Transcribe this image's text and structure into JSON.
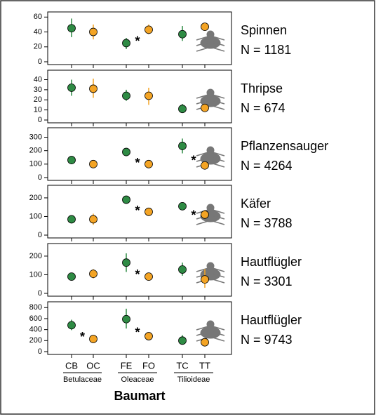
{
  "chart_data": [
    {
      "type": "dotplot",
      "title": "Spinnen",
      "n_label": "N = 1181",
      "ylim": [
        0,
        65
      ],
      "yticks": [
        0,
        20,
        40,
        60
      ],
      "values": [
        45,
        40,
        25,
        43,
        37,
        47
      ],
      "lower": [
        33,
        30,
        17,
        37,
        28,
        42
      ],
      "upper": [
        58,
        50,
        32,
        50,
        48,
        52
      ],
      "significant": [
        false,
        true,
        false
      ]
    },
    {
      "type": "dotplot",
      "title": "Thripse",
      "n_label": "N = 674",
      "ylim": [
        0,
        48
      ],
      "yticks": [
        0,
        10,
        20,
        30,
        40
      ],
      "values": [
        32,
        31,
        24,
        24,
        11,
        12
      ],
      "lower": [
        24,
        22,
        19,
        15,
        8,
        10
      ],
      "upper": [
        40,
        41,
        30,
        32,
        16,
        15
      ],
      "significant": [
        false,
        false,
        false
      ]
    },
    {
      "type": "dotplot",
      "title": "Pflanzensauger",
      "n_label": "N = 4264",
      "ylim": [
        0,
        360
      ],
      "yticks": [
        0,
        100,
        200,
        300
      ],
      "values": [
        130,
        100,
        190,
        100,
        235,
        90
      ],
      "lower": [
        115,
        85,
        160,
        85,
        180,
        75
      ],
      "upper": [
        145,
        115,
        220,
        115,
        290,
        105
      ],
      "significant": [
        false,
        true,
        true
      ]
    },
    {
      "type": "dotplot",
      "title": "Käfer",
      "n_label": "N = 3788",
      "ylim": [
        0,
        260
      ],
      "yticks": [
        0,
        100,
        200
      ],
      "values": [
        85,
        85,
        190,
        125,
        155,
        110
      ],
      "lower": [
        75,
        55,
        170,
        115,
        140,
        90
      ],
      "upper": [
        95,
        115,
        210,
        135,
        170,
        135
      ],
      "significant": [
        false,
        true,
        true
      ]
    },
    {
      "type": "dotplot",
      "title": "Hautflügler",
      "n_label": "N = 3301",
      "ylim": [
        0,
        260
      ],
      "yticks": [
        0,
        100,
        200
      ],
      "values": [
        90,
        105,
        165,
        90,
        128,
        75
      ],
      "lower": [
        80,
        80,
        115,
        80,
        95,
        30
      ],
      "upper": [
        100,
        130,
        215,
        100,
        165,
        130
      ],
      "significant": [
        false,
        true,
        false
      ]
    },
    {
      "type": "dotplot",
      "title": "Hautflügler",
      "n_label": "N = 9743",
      "ylim": [
        0,
        880
      ],
      "yticks": [
        0,
        200,
        400,
        600,
        800
      ],
      "values": [
        480,
        230,
        590,
        280,
        200,
        170
      ],
      "lower": [
        390,
        200,
        420,
        250,
        140,
        140
      ],
      "upper": [
        580,
        260,
        780,
        310,
        300,
        200
      ],
      "significant": [
        true,
        true,
        false
      ]
    }
  ],
  "x_axis": {
    "categories": [
      "CB",
      "OC",
      "FE",
      "FO",
      "TC",
      "TT"
    ],
    "groups": [
      "Betulaceae",
      "Oleaceae",
      "Tilioideae"
    ],
    "label": "Baumart"
  },
  "colors": [
    "#2e8b44",
    "#f4a424"
  ],
  "significance_label": "*"
}
